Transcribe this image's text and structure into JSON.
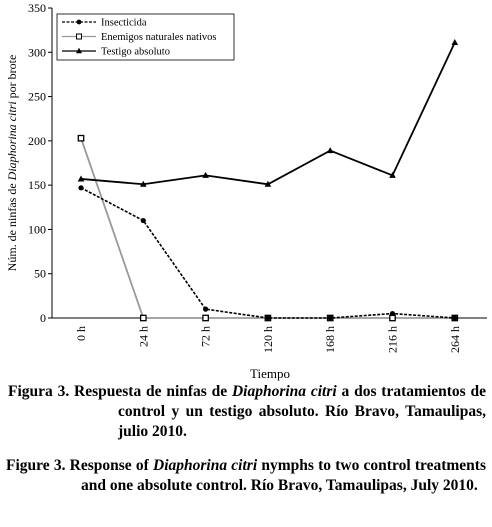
{
  "chart_data": {
    "type": "line",
    "y_label": [
      "Núm. de ninfas de ",
      "Diaphorina citri",
      " por brote"
    ],
    "x_label": "Tiempo",
    "categories": [
      "0 h",
      "24 h",
      "72 h",
      "120 h",
      "168 h",
      "216 h",
      "264 h"
    ],
    "series": [
      {
        "name": "Insecticida",
        "color": "#000000",
        "line_style": "dashed",
        "marker": "circle",
        "values": [
          147,
          110,
          10,
          0,
          0,
          5,
          0
        ]
      },
      {
        "name": "Enemigos naturales nativos",
        "color": "#999999",
        "line_style": "solid",
        "marker": "square",
        "values": [
          203,
          0,
          0,
          0,
          0,
          0,
          0
        ]
      },
      {
        "name": "Testigo absoluto",
        "color": "#000000",
        "line_style": "solid",
        "marker": "triangle",
        "values": [
          157,
          151,
          161,
          151,
          189,
          161,
          311
        ]
      }
    ],
    "ylim": [
      0,
      350
    ],
    "yticks": [
      0,
      50,
      100,
      150,
      200,
      250,
      300,
      350
    ],
    "legend": "upper left"
  },
  "captions": [
    [
      "Figura 3. Respuesta de ninfas de ",
      "Diaphorina citri",
      " a dos tratamientos de control y un testigo absoluto. Río Bravo, Tamaulipas, julio 2010."
    ],
    [
      "Figure 3. Response of ",
      "Diaphorina citri",
      " nymphs to two control treatments and one absolute control. Río Bravo, Tamaulipas, July 2010."
    ]
  ]
}
